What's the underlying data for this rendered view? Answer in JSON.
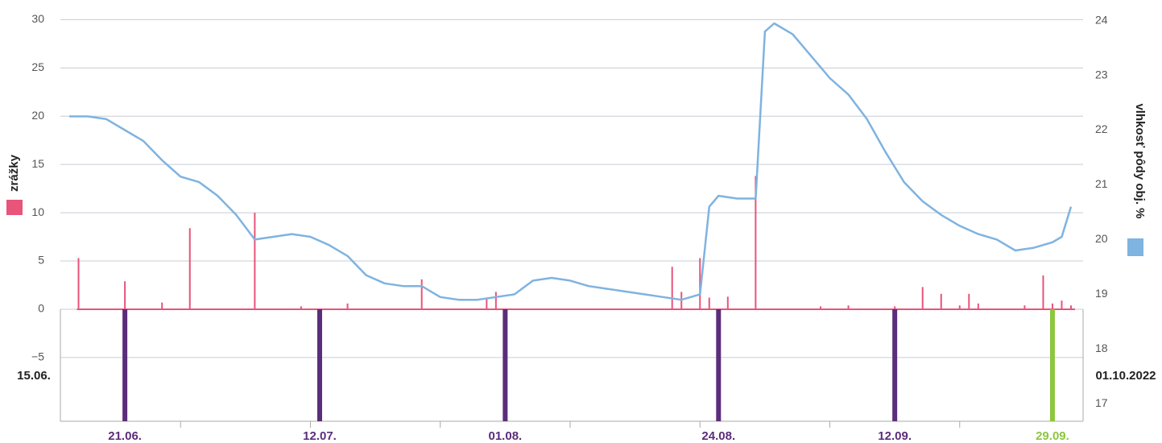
{
  "chart_data": {
    "type": "line",
    "ylabel": "zrážky",
    "y2label": "vlhkosť pôdy obj. %",
    "xlim": [
      "2022-06-15",
      "2022-10-01"
    ],
    "xlim_labels": [
      "15.06.",
      "01.10.2022"
    ],
    "xticks": [
      "2022-06-27",
      "2022-07-11",
      "2022-07-25",
      "2022-08-08",
      "2022-08-22",
      "2022-09-05",
      "2022-09-19"
    ],
    "ylim": [
      -11.6,
      31.2
    ],
    "yticks": [
      {
        "value": -5,
        "label": "−5"
      },
      0,
      5,
      10,
      15,
      20,
      25,
      30
    ],
    "y2lim": [
      16.68,
      24.23
    ],
    "y2ticks": [
      17,
      18,
      19,
      20,
      21,
      22,
      23,
      24
    ],
    "grid": true,
    "series": [
      {
        "name": "zrážky",
        "type": "bar",
        "color": "#e8547a",
        "x": [
          "2022-06-16",
          "2022-06-21",
          "2022-06-25",
          "2022-06-28",
          "2022-07-05",
          "2022-07-10",
          "2022-07-15",
          "2022-07-23",
          "2022-07-30",
          "2022-07-31",
          "2022-08-19",
          "2022-08-20",
          "2022-08-22",
          "2022-08-23",
          "2022-08-25",
          "2022-08-28",
          "2022-09-04",
          "2022-09-07",
          "2022-09-12",
          "2022-09-15",
          "2022-09-17",
          "2022-09-19",
          "2022-09-20",
          "2022-09-21",
          "2022-09-26",
          "2022-09-28",
          "2022-09-29",
          "2022-09-30",
          "2022-10-01"
        ],
        "values": [
          5.3,
          2.9,
          0.7,
          8.4,
          10,
          0.3,
          0.6,
          3.1,
          1.2,
          1.8,
          4.4,
          1.8,
          5.3,
          1.2,
          1.3,
          13.8,
          0.3,
          0.4,
          0.3,
          2.3,
          1.6,
          0.4,
          1.6,
          0.6,
          0.4,
          3.5,
          0.6,
          0.9,
          0.4
        ]
      },
      {
        "name": "vlhkosť pôdy obj. %",
        "type": "line",
        "axis": "y2",
        "color": "#7fb3e0",
        "x": [
          "2022-06-15",
          "2022-06-17",
          "2022-06-19",
          "2022-06-21",
          "2022-06-23",
          "2022-06-25",
          "2022-06-27",
          "2022-06-29",
          "2022-07-01",
          "2022-07-03",
          "2022-07-05",
          "2022-07-07",
          "2022-07-09",
          "2022-07-11",
          "2022-07-13",
          "2022-07-15",
          "2022-07-17",
          "2022-07-19",
          "2022-07-21",
          "2022-07-23",
          "2022-07-25",
          "2022-07-27",
          "2022-07-29",
          "2022-07-31",
          "2022-08-02",
          "2022-08-04",
          "2022-08-06",
          "2022-08-08",
          "2022-08-10",
          "2022-08-12",
          "2022-08-14",
          "2022-08-16",
          "2022-08-18",
          "2022-08-20",
          "2022-08-22",
          "2022-08-23",
          "2022-08-24",
          "2022-08-26",
          "2022-08-28",
          "2022-08-29",
          "2022-08-30",
          "2022-09-01",
          "2022-09-03",
          "2022-09-05",
          "2022-09-07",
          "2022-09-09",
          "2022-09-11",
          "2022-09-13",
          "2022-09-15",
          "2022-09-17",
          "2022-09-19",
          "2022-09-21",
          "2022-09-23",
          "2022-09-25",
          "2022-09-27",
          "2022-09-29",
          "2022-09-30",
          "2022-10-01"
        ],
        "values": [
          22.25,
          22.25,
          22.2,
          22.0,
          21.8,
          21.45,
          21.15,
          21.05,
          20.8,
          20.45,
          20.0,
          20.05,
          20.1,
          20.05,
          19.9,
          19.7,
          19.35,
          19.2,
          19.15,
          19.15,
          18.95,
          18.9,
          18.9,
          18.95,
          19.0,
          19.25,
          19.3,
          19.25,
          19.15,
          19.1,
          19.05,
          19.0,
          18.95,
          18.9,
          19.0,
          20.6,
          20.8,
          20.75,
          20.75,
          23.8,
          23.95,
          23.75,
          23.35,
          22.95,
          22.65,
          22.2,
          21.6,
          21.05,
          20.7,
          20.45,
          20.25,
          20.1,
          20.0,
          19.8,
          19.85,
          19.95,
          20.05,
          20.6
        ]
      }
    ],
    "events": [
      {
        "x": "2022-06-21",
        "label": "21.06.",
        "color": "#5b2d7a"
      },
      {
        "x": "2022-07-12",
        "label": "12.07.",
        "color": "#5b2d7a"
      },
      {
        "x": "2022-08-01",
        "label": "01.08.",
        "color": "#5b2d7a"
      },
      {
        "x": "2022-08-24",
        "label": "24.08.",
        "color": "#5b2d7a"
      },
      {
        "x": "2022-09-12",
        "label": "12.09.",
        "color": "#5b2d7a"
      },
      {
        "x": "2022-09-29",
        "label": "29.09.",
        "color": "#8dc63f"
      }
    ]
  }
}
